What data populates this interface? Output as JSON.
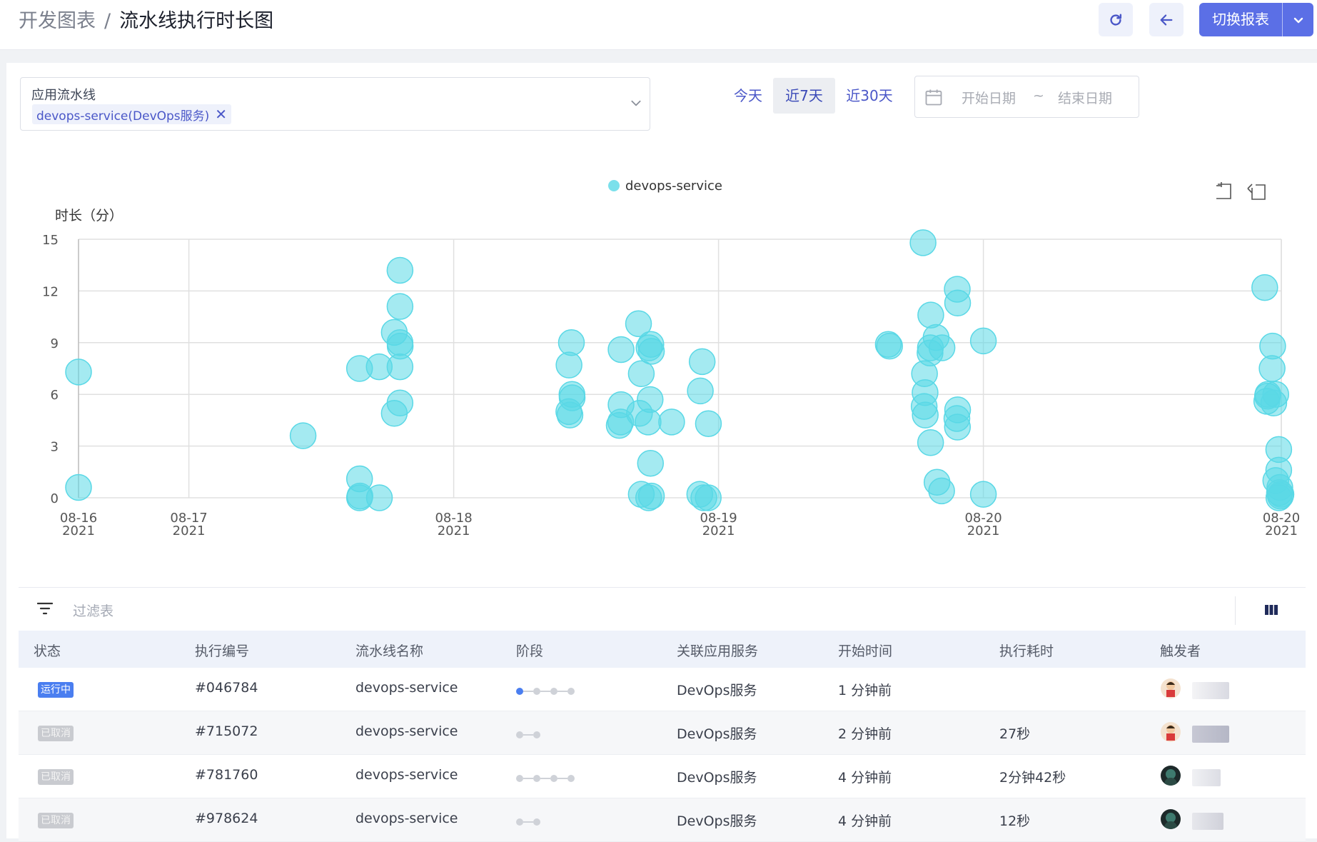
{
  "breadcrumb": {
    "parent": "开发图表",
    "separator": "/",
    "current": "流水线执行时长图"
  },
  "toolbar": {
    "refresh_icon": "refresh-icon",
    "back_icon": "arrow-left-icon",
    "switch_label": "切换报表",
    "accent": "#5b6fe6"
  },
  "filter": {
    "pipeline_label": "应用流水线",
    "pipeline_tag": "devops-service(DevOps服务)",
    "tag_close": "✕",
    "ranges": [
      {
        "label": "今天",
        "active": false
      },
      {
        "label": "近7天",
        "active": true
      },
      {
        "label": "近30天",
        "active": false
      }
    ],
    "date_start_placeholder": "开始日期",
    "date_separator": "~",
    "date_end_placeholder": "结束日期"
  },
  "chart_data": {
    "type": "scatter",
    "ylabel": "时长（分）",
    "ylim": [
      0,
      15
    ],
    "yticks": [
      0,
      3,
      6,
      9,
      12,
      15
    ],
    "xlim": [
      "2021-08-16 00:00",
      "2021-08-20 13:00"
    ],
    "xticks": [
      {
        "x": "2021-08-16 00:00",
        "label": "08-16",
        "year": "2021"
      },
      {
        "x": "2021-08-16 10:00",
        "label": "08-17",
        "year": "2021"
      },
      {
        "x": "2021-08-17 10:00",
        "label": "08-18",
        "year": "2021"
      },
      {
        "x": "2021-08-18 10:00",
        "label": "08-19",
        "year": "2021"
      },
      {
        "x": "2021-08-19 10:00",
        "label": "08-20",
        "year": "2021"
      },
      {
        "x": "2021-08-20 13:00",
        "label": "08-20",
        "year": "2021"
      }
    ],
    "grid": true,
    "legend_position": "top-center",
    "series": [
      {
        "name": "devops-service",
        "color": "#5ad8e6",
        "points": [
          {
            "x": "2021-08-16 00:00",
            "y": 7.3
          },
          {
            "x": "2021-08-16 00:00",
            "y": 0.6
          },
          {
            "x": "2021-08-16 20:21",
            "y": 3.6
          },
          {
            "x": "2021-08-17 01:28",
            "y": 7.5
          },
          {
            "x": "2021-08-17 01:28",
            "y": 1.1
          },
          {
            "x": "2021-08-17 01:28",
            "y": 0.0
          },
          {
            "x": "2021-08-17 01:30",
            "y": 0.1
          },
          {
            "x": "2021-08-17 03:15",
            "y": 7.6
          },
          {
            "x": "2021-08-17 03:16",
            "y": 0.0
          },
          {
            "x": "2021-08-17 04:37",
            "y": 9.6
          },
          {
            "x": "2021-08-17 04:37",
            "y": 4.9
          },
          {
            "x": "2021-08-17 05:08",
            "y": 13.2
          },
          {
            "x": "2021-08-17 05:08",
            "y": 11.1
          },
          {
            "x": "2021-08-17 05:08",
            "y": 9.0
          },
          {
            "x": "2021-08-17 05:09",
            "y": 8.8
          },
          {
            "x": "2021-08-17 05:08",
            "y": 7.6
          },
          {
            "x": "2021-08-17 05:08",
            "y": 5.5
          },
          {
            "x": "2021-08-17 20:40",
            "y": 9.0
          },
          {
            "x": "2021-08-17 20:27",
            "y": 7.7
          },
          {
            "x": "2021-08-17 20:43",
            "y": 6.0
          },
          {
            "x": "2021-08-17 20:44",
            "y": 5.8
          },
          {
            "x": "2021-08-17 20:26",
            "y": 5.0
          },
          {
            "x": "2021-08-17 20:32",
            "y": 4.8
          },
          {
            "x": "2021-08-18 01:10",
            "y": 8.6
          },
          {
            "x": "2021-08-18 01:10",
            "y": 5.4
          },
          {
            "x": "2021-08-18 01:00",
            "y": 4.2
          },
          {
            "x": "2021-08-18 01:08",
            "y": 4.4
          },
          {
            "x": "2021-08-18 02:45",
            "y": 10.1
          },
          {
            "x": "2021-08-18 02:50",
            "y": 4.9
          },
          {
            "x": "2021-08-18 03:00",
            "y": 7.2
          },
          {
            "x": "2021-08-18 03:00",
            "y": 0.2
          },
          {
            "x": "2021-08-18 03:42",
            "y": 8.7
          },
          {
            "x": "2021-08-18 03:52",
            "y": 8.9
          },
          {
            "x": "2021-08-18 03:55",
            "y": 8.5
          },
          {
            "x": "2021-08-18 03:48",
            "y": 5.7
          },
          {
            "x": "2021-08-18 03:37",
            "y": 4.4
          },
          {
            "x": "2021-08-18 03:40",
            "y": 0.0
          },
          {
            "x": "2021-08-18 03:50",
            "y": 2.0
          },
          {
            "x": "2021-08-18 03:55",
            "y": 0.1
          },
          {
            "x": "2021-08-18 05:45",
            "y": 4.4
          },
          {
            "x": "2021-08-18 08:21",
            "y": 6.2
          },
          {
            "x": "2021-08-18 08:31",
            "y": 7.9
          },
          {
            "x": "2021-08-18 08:18",
            "y": 0.2
          },
          {
            "x": "2021-08-18 08:40",
            "y": 0.0
          },
          {
            "x": "2021-08-18 09:04",
            "y": 0.0
          },
          {
            "x": "2021-08-18 09:05",
            "y": 4.3
          },
          {
            "x": "2021-08-19 01:23",
            "y": 8.9
          },
          {
            "x": "2021-08-19 01:30",
            "y": 8.8
          },
          {
            "x": "2021-08-19 04:32",
            "y": 14.8
          },
          {
            "x": "2021-08-19 04:40",
            "y": 7.2
          },
          {
            "x": "2021-08-19 04:43",
            "y": 6.1
          },
          {
            "x": "2021-08-19 04:38",
            "y": 5.3
          },
          {
            "x": "2021-08-19 04:44",
            "y": 4.8
          },
          {
            "x": "2021-08-19 05:14",
            "y": 10.6
          },
          {
            "x": "2021-08-19 05:12",
            "y": 8.7
          },
          {
            "x": "2021-08-19 05:10",
            "y": 8.4
          },
          {
            "x": "2021-08-19 05:13",
            "y": 3.2
          },
          {
            "x": "2021-08-19 05:43",
            "y": 9.3
          },
          {
            "x": "2021-08-19 05:48",
            "y": 0.9
          },
          {
            "x": "2021-08-19 06:15",
            "y": 8.7
          },
          {
            "x": "2021-08-19 06:13",
            "y": 0.4
          },
          {
            "x": "2021-08-19 07:38",
            "y": 12.1
          },
          {
            "x": "2021-08-19 07:40",
            "y": 11.3
          },
          {
            "x": "2021-08-19 07:40",
            "y": 5.1
          },
          {
            "x": "2021-08-19 07:36",
            "y": 4.6
          },
          {
            "x": "2021-08-19 07:39",
            "y": 4.1
          },
          {
            "x": "2021-08-19 10:00",
            "y": 9.1
          },
          {
            "x": "2021-08-19 10:00",
            "y": 0.2
          },
          {
            "x": "2021-08-20 11:30",
            "y": 12.2
          },
          {
            "x": "2021-08-20 12:13",
            "y": 8.8
          },
          {
            "x": "2021-08-20 12:10",
            "y": 7.5
          },
          {
            "x": "2021-08-20 11:47",
            "y": 6.0
          },
          {
            "x": "2021-08-20 11:41",
            "y": 5.6
          },
          {
            "x": "2021-08-20 11:45",
            "y": 5.9
          },
          {
            "x": "2021-08-20 12:30",
            "y": 6.0
          },
          {
            "x": "2021-08-20 12:19",
            "y": 5.5
          },
          {
            "x": "2021-08-20 12:46",
            "y": 2.8
          },
          {
            "x": "2021-08-20 12:46",
            "y": 1.6
          },
          {
            "x": "2021-08-20 12:30",
            "y": 1.0
          },
          {
            "x": "2021-08-20 12:52",
            "y": 0.6
          },
          {
            "x": "2021-08-20 12:50",
            "y": 0.3
          },
          {
            "x": "2021-08-20 12:55",
            "y": 0.1
          },
          {
            "x": "2021-08-20 12:47",
            "y": 0.0
          },
          {
            "x": "2021-08-20 12:58",
            "y": 0.2
          }
        ]
      }
    ]
  },
  "table": {
    "filter_icon": "filter-icon",
    "filter_placeholder": "过滤表",
    "columns_icon": "columns-icon",
    "headers": [
      "状态",
      "执行编号",
      "流水线名称",
      "阶段",
      "关联应用服务",
      "开始时间",
      "执行耗时",
      "触发者"
    ],
    "rows": [
      {
        "status": "运行中",
        "status_type": "running",
        "id": "#046784",
        "pipeline": "devops-service",
        "stages": 4,
        "current_stage": 1,
        "service": "DevOps服务",
        "start": "1 分钟前",
        "duration": "",
        "avatar": "avatar-red"
      },
      {
        "status": "已取消",
        "status_type": "cancelled",
        "id": "#715072",
        "pipeline": "devops-service",
        "stages": 2,
        "current_stage": 0,
        "service": "DevOps服务",
        "start": "2 分钟前",
        "duration": "27秒",
        "avatar": "avatar-red"
      },
      {
        "status": "已取消",
        "status_type": "cancelled",
        "id": "#781760",
        "pipeline": "devops-service",
        "stages": 4,
        "current_stage": 0,
        "service": "DevOps服务",
        "start": "4 分钟前",
        "duration": "2分钟42秒",
        "avatar": "avatar-dark"
      },
      {
        "status": "已取消",
        "status_type": "cancelled",
        "id": "#978624",
        "pipeline": "devops-service",
        "stages": 2,
        "current_stage": 0,
        "service": "DevOps服务",
        "start": "4 分钟前",
        "duration": "12秒",
        "avatar": "avatar-dark"
      }
    ]
  }
}
